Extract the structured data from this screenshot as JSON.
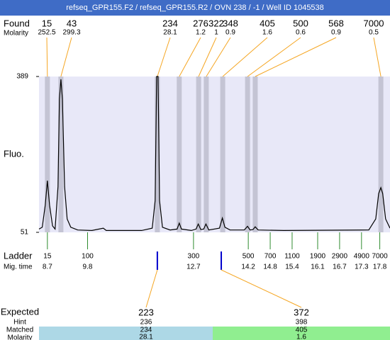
{
  "chart_data": {
    "type": "electropherogram",
    "title": "refseq_GPR155.F2 / refseq_GPR155.R2 / OVN 238 / -1 / Well ID 1045538",
    "y_label": "Fluo.",
    "xlim": [
      8.47,
      18.08
    ],
    "ylim": [
      51,
      389
    ],
    "yticks": [
      51,
      389
    ],
    "found": {
      "label": "Found",
      "molarity_label": "Molarity",
      "sizes": [
        15,
        43,
        234,
        276,
        322,
        348,
        405,
        500,
        568,
        7000
      ],
      "molarity": [
        252.5,
        299.3,
        28.1,
        1.2,
        1,
        0.9,
        1.6,
        0.6,
        0.9,
        0.5
      ],
      "times": [
        8.7,
        9.07,
        11.71,
        12.31,
        12.84,
        13.05,
        13.5,
        14.18,
        14.39,
        17.83
      ]
    },
    "trace": {
      "color": "#000000",
      "x": [
        8.47,
        8.56,
        8.64,
        8.7,
        8.76,
        8.84,
        8.91,
        8.99,
        9.03,
        9.07,
        9.11,
        9.17,
        9.24,
        9.34,
        9.53,
        9.92,
        10.23,
        10.31,
        11.28,
        11.57,
        11.65,
        11.69,
        11.73,
        11.77,
        11.85,
        12.06,
        12.25,
        12.31,
        12.37,
        12.64,
        12.77,
        12.83,
        12.9,
        12.98,
        13.04,
        13.12,
        13.41,
        13.49,
        13.56,
        13.7,
        14.09,
        14.18,
        14.25,
        14.33,
        14.39,
        14.47,
        15.17,
        17.5,
        17.69,
        17.77,
        17.83,
        17.88,
        17.96,
        18.08
      ],
      "y": [
        58,
        62,
        110,
        163,
        110,
        65,
        58,
        150,
        340,
        383,
        340,
        150,
        80,
        62,
        56,
        55,
        60,
        55,
        55,
        60,
        120,
        389,
        389,
        120,
        62,
        56,
        58,
        71,
        58,
        55,
        58,
        69,
        57,
        58,
        69,
        56,
        60,
        82,
        62,
        56,
        56,
        64,
        56,
        57,
        63,
        56,
        55,
        56,
        80,
        135,
        148,
        135,
        80,
        60
      ]
    },
    "ladder": {
      "label": "Ladder",
      "time_label": "Mig. time",
      "sizes": [
        15,
        100,
        300,
        500,
        700,
        1100,
        1900,
        2900,
        4900,
        7000
      ],
      "times": [
        8.7,
        9.8,
        12.7,
        14.2,
        14.8,
        15.4,
        16.1,
        16.7,
        17.3,
        17.8
      ]
    },
    "expected": {
      "label": "Expected",
      "hint_label": "Hint",
      "matched_label": "Matched",
      "molarity_label": "Molarity",
      "values": [
        223,
        372
      ],
      "hint": [
        236,
        398
      ],
      "matched": [
        234,
        405
      ],
      "molarity": [
        28.1,
        1.6
      ],
      "times": [
        11.71,
        13.46
      ],
      "colors": [
        "#add8e6",
        "#90ee90"
      ]
    }
  }
}
